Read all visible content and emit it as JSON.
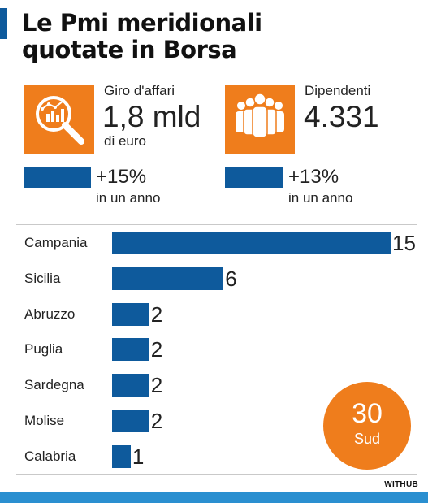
{
  "title": {
    "line1": "Le Pmi meridionali",
    "line2": "quotate in Borsa"
  },
  "kpis": [
    {
      "label": "Giro d'affari",
      "value": "1,8 mld",
      "unit": "di euro",
      "growth": "+15%",
      "period": "in un anno",
      "icon": "magnifier-chart-icon"
    },
    {
      "label": "Dipendenti",
      "value": "4.331",
      "unit": "",
      "growth": "+13%",
      "period": "in un anno",
      "icon": "people-group-icon"
    }
  ],
  "total": {
    "value": "30",
    "label": "Sud"
  },
  "brand": "WITHUB",
  "colors": {
    "bar": "#0e5a9c",
    "accent": "#ef7d1c",
    "footer": "#2a8fd0"
  },
  "chart_data": {
    "type": "bar",
    "orientation": "horizontal",
    "categories": [
      "Campania",
      "Sicilia",
      "Abruzzo",
      "Puglia",
      "Sardegna",
      "Molise",
      "Calabria"
    ],
    "values": [
      15,
      6,
      2,
      2,
      2,
      2,
      1
    ],
    "value_labels": [
      "15",
      "6",
      "2",
      "2",
      "2",
      "2",
      "1"
    ],
    "xlim": [
      0,
      15
    ],
    "grid": false,
    "title": "",
    "xlabel": "",
    "ylabel": ""
  }
}
